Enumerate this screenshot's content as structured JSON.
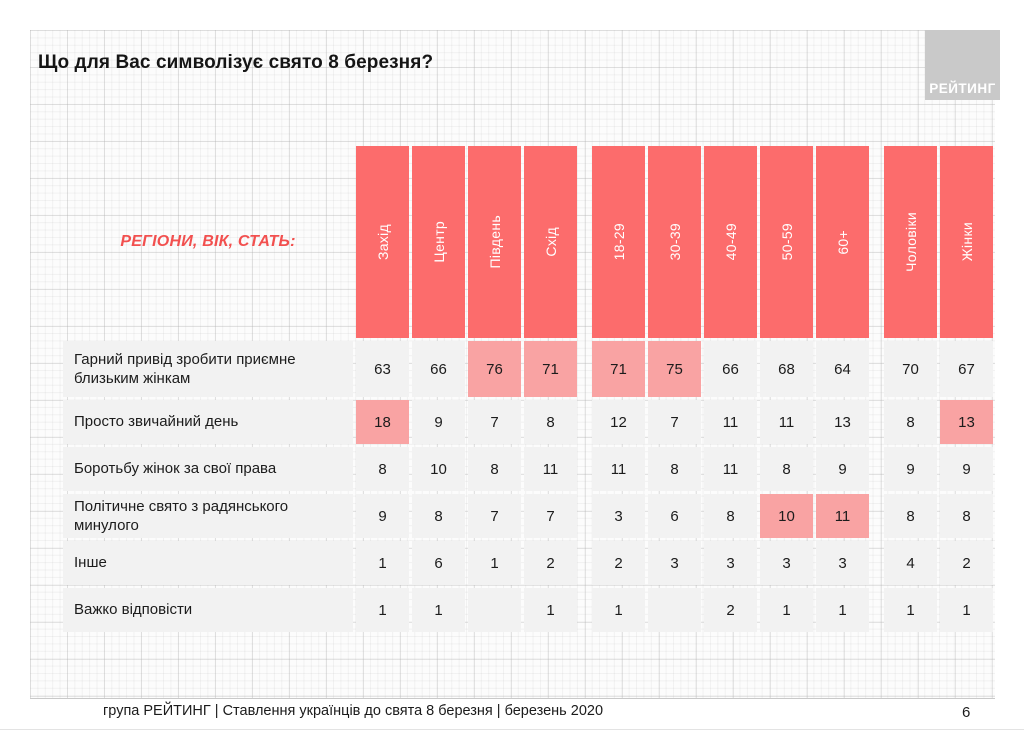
{
  "slide": {
    "title": "Що для Вас символізує свято 8 березня?",
    "logo_text": "РЕЙТИНГ",
    "footer": "група РЕЙТИНГ | Ставлення українців до свята 8 березня  | березень 2020",
    "page_number": "6"
  },
  "colors": {
    "header_red": "#fc6c6c",
    "highlight_pink": "#f9a3a3",
    "cell_gray": "#f2f2f2",
    "accent_red": "#f2504f",
    "logo_gray": "#c9c9c9"
  },
  "table": {
    "axis_label": "РЕГІОНИ, ВІК, СТАТЬ:",
    "columns": [
      "Захід",
      "Центр",
      "Південь",
      "Схід",
      "18-29",
      "30-39",
      "40-49",
      "50-59",
      "60+",
      "Чоловіки",
      "Жінки"
    ],
    "group_breaks_after": [
      3,
      8
    ],
    "rows": [
      {
        "label": "Гарний привід зробити приємне близьким жінкам",
        "values": [
          "63",
          "66",
          "76",
          "71",
          "71",
          "75",
          "66",
          "68",
          "64",
          "70",
          "67"
        ],
        "highlights": [
          2,
          3,
          4,
          5
        ]
      },
      {
        "label": "Просто звичайний день",
        "values": [
          "18",
          "9",
          "7",
          "8",
          "12",
          "7",
          "11",
          "11",
          "13",
          "8",
          "13"
        ],
        "highlights": [
          0,
          10
        ]
      },
      {
        "label": "Боротьбу жінок за свої права",
        "values": [
          "8",
          "10",
          "8",
          "11",
          "11",
          "8",
          "11",
          "8",
          "9",
          "9",
          "9"
        ],
        "highlights": []
      },
      {
        "label": "Політичне свято з радянського минулого",
        "values": [
          "9",
          "8",
          "7",
          "7",
          "3",
          "6",
          "8",
          "10",
          "11",
          "8",
          "8"
        ],
        "highlights": [
          7,
          8
        ]
      },
      {
        "label": "Інше",
        "values": [
          "1",
          "6",
          "1",
          "2",
          "2",
          "3",
          "3",
          "3",
          "3",
          "4",
          "2"
        ],
        "highlights": []
      },
      {
        "label": "Важко відповісти",
        "values": [
          "1",
          "1",
          "",
          "1",
          "1",
          "",
          "2",
          "1",
          "1",
          "1",
          "1"
        ],
        "highlights": []
      }
    ]
  },
  "chart_data": {
    "type": "table",
    "title": "Що для Вас символізує свято 8 березня?",
    "column_groups": [
      {
        "group": "regions",
        "columns": [
          "Захід",
          "Центр",
          "Південь",
          "Схід"
        ]
      },
      {
        "group": "age",
        "columns": [
          "18-29",
          "30-39",
          "40-49",
          "50-59",
          "60+"
        ]
      },
      {
        "group": "gender",
        "columns": [
          "Чоловіки",
          "Жінки"
        ]
      }
    ],
    "rows": [
      {
        "label": "Гарний привід зробити приємне близьким жінкам",
        "values": [
          63,
          66,
          76,
          71,
          71,
          75,
          66,
          68,
          64,
          70,
          67
        ],
        "highlighted": [
          "Південь",
          "Схід",
          "18-29",
          "30-39"
        ]
      },
      {
        "label": "Просто звичайний день",
        "values": [
          18,
          9,
          7,
          8,
          12,
          7,
          11,
          11,
          13,
          8,
          13
        ],
        "highlighted": [
          "Захід",
          "Жінки"
        ]
      },
      {
        "label": "Боротьбу жінок за свої права",
        "values": [
          8,
          10,
          8,
          11,
          11,
          8,
          11,
          8,
          9,
          9,
          9
        ],
        "highlighted": []
      },
      {
        "label": "Політичне свято з радянського минулого",
        "values": [
          9,
          8,
          7,
          7,
          3,
          6,
          8,
          10,
          11,
          8,
          8
        ],
        "highlighted": [
          "50-59",
          "60+"
        ]
      },
      {
        "label": "Інше",
        "values": [
          1,
          6,
          1,
          2,
          2,
          3,
          3,
          3,
          3,
          4,
          2
        ],
        "highlighted": []
      },
      {
        "label": "Важко відповісти",
        "values": [
          1,
          1,
          null,
          1,
          1,
          null,
          2,
          1,
          1,
          1,
          1
        ],
        "highlighted": []
      }
    ]
  }
}
